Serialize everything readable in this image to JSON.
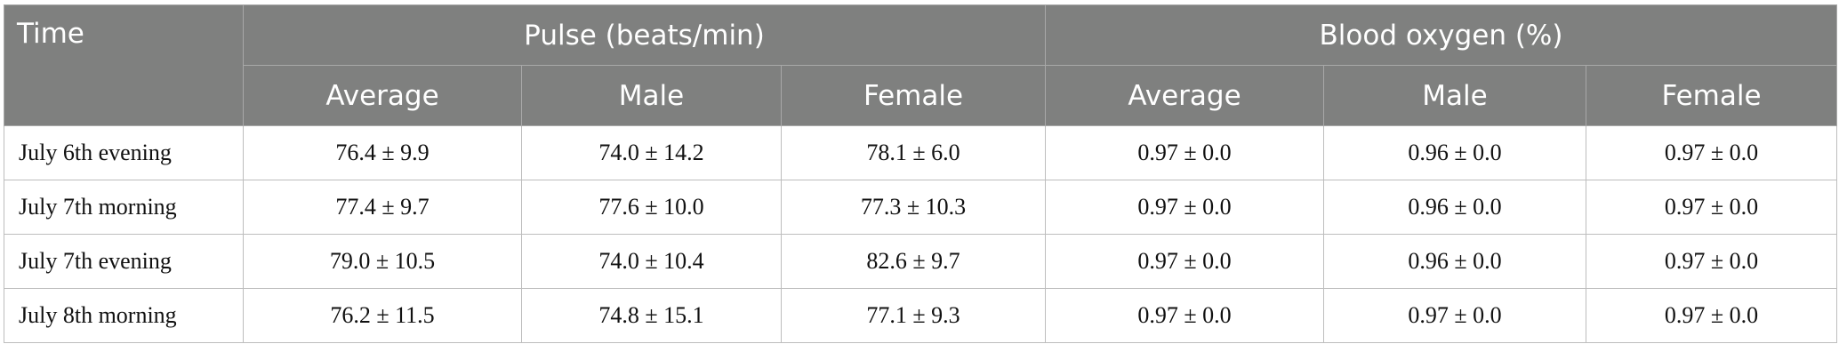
{
  "table": {
    "header": {
      "time": "Time",
      "groups": [
        "Pulse (beats/min)",
        "Blood oxygen (%)"
      ],
      "subheaders": [
        "Average",
        "Male",
        "Female",
        "Average",
        "Male",
        "Female"
      ]
    },
    "rows": [
      [
        "July 6th evening",
        "76.4 ± 9.9",
        "74.0 ± 14.2",
        "78.1 ± 6.0",
        "0.97 ± 0.0",
        "0.96 ± 0.0",
        "0.97 ± 0.0"
      ],
      [
        "July 7th morning",
        "77.4 ± 9.7",
        "77.6 ± 10.0",
        "77.3 ± 10.3",
        "0.97 ± 0.0",
        "0.96 ± 0.0",
        "0.97 ± 0.0"
      ],
      [
        "July 7th evening",
        "79.0 ± 10.5",
        "74.0 ± 10.4",
        "82.6 ± 9.7",
        "0.97 ± 0.0",
        "0.96 ± 0.0",
        "0.97 ± 0.0"
      ],
      [
        "July 8th morning",
        "76.2 ± 11.5",
        "74.8 ± 15.1",
        "77.1 ± 9.3",
        "0.97 ± 0.0",
        "0.97 ± 0.0",
        "0.97 ± 0.0"
      ]
    ]
  }
}
